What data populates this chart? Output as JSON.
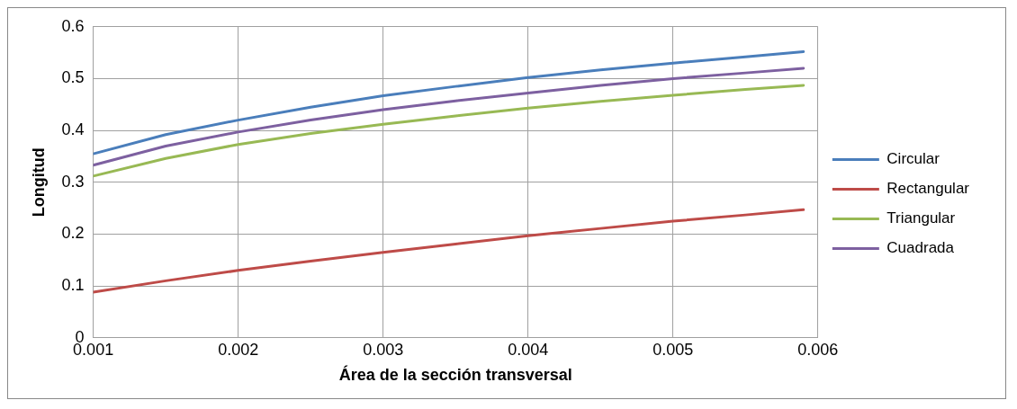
{
  "chart_data": {
    "type": "line",
    "xlabel": "Área de la sección transversal",
    "ylabel": "Longitud",
    "x": [
      0.001,
      0.0015,
      0.002,
      0.0025,
      0.003,
      0.0035,
      0.004,
      0.0045,
      0.005,
      0.0055,
      0.0059
    ],
    "series": [
      {
        "name": "Circular",
        "color": "#4a7ebb",
        "values": [
          0.355,
          0.392,
          0.42,
          0.445,
          0.467,
          0.485,
          0.502,
          0.517,
          0.53,
          0.542,
          0.552
        ]
      },
      {
        "name": "Rectangular",
        "color": "#be4b48",
        "values": [
          0.088,
          0.11,
          0.13,
          0.148,
          0.165,
          0.181,
          0.197,
          0.211,
          0.225,
          0.237,
          0.247
        ]
      },
      {
        "name": "Triangular",
        "color": "#98b954",
        "values": [
          0.312,
          0.346,
          0.373,
          0.394,
          0.412,
          0.428,
          0.443,
          0.456,
          0.468,
          0.479,
          0.487
        ]
      },
      {
        "name": "Cuadrada",
        "color": "#7d60a0",
        "values": [
          0.333,
          0.37,
          0.397,
          0.42,
          0.44,
          0.457,
          0.472,
          0.487,
          0.5,
          0.511,
          0.52
        ]
      }
    ],
    "xlim": [
      0.001,
      0.006
    ],
    "xticks": [
      0.001,
      0.002,
      0.003,
      0.004,
      0.005,
      0.006
    ],
    "ylim": [
      0,
      0.6
    ],
    "yticks": [
      0,
      0.1,
      0.2,
      0.3,
      0.4,
      0.5,
      0.6
    ],
    "grid": true,
    "legend": "right",
    "marker": "none",
    "line_style": "solid"
  }
}
